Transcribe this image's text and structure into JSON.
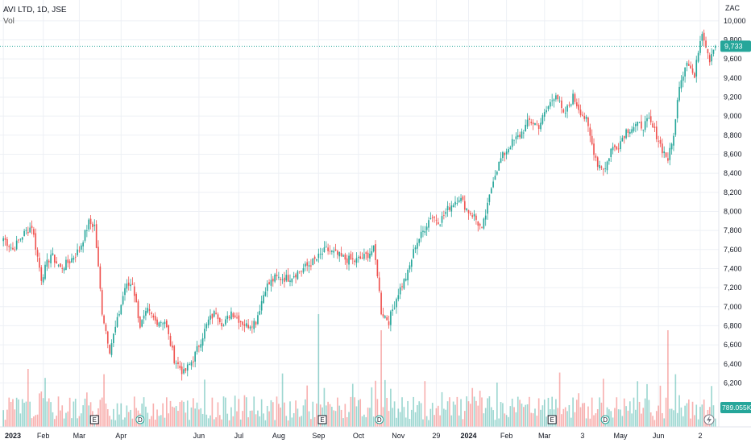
{
  "header": {
    "symbol": "AVI LTD, 1D, JSE",
    "volume_label": "Vol"
  },
  "price_axis": {
    "currency": "ZAC",
    "last_price_label": "9,733",
    "volume_label": "789.055K"
  },
  "colors": {
    "up": "#26a69a",
    "down": "#ef5350",
    "grid": "#edf0f5",
    "last_price_line": "#26a69a"
  },
  "chart_data": {
    "type": "candlestick",
    "ylim": [
      5950,
      10100
    ],
    "y_ticks": [
      6200,
      6400,
      6600,
      6800,
      7000,
      7200,
      7400,
      7600,
      7800,
      8000,
      8200,
      8400,
      8600,
      8800,
      9000,
      9200,
      9400,
      9600,
      9800,
      10000
    ],
    "y_tick_labels": [
      "6,200",
      "6,400",
      "6,600",
      "6,800",
      "7,000",
      "7,200",
      "7,400",
      "7,600",
      "7,800",
      "8,000",
      "8,200",
      "8,400",
      "8,600",
      "8,800",
      "9,000",
      "9,200",
      "9,400",
      "9,600",
      "9,800",
      "10,000"
    ],
    "x_labels": [
      "2023",
      "Feb",
      "Mar",
      "Apr",
      "Jun",
      "Jul",
      "Aug",
      "Sep",
      "Oct",
      "Nov",
      "29",
      "2024",
      "Feb",
      "Mar",
      "3",
      "May",
      "Jun",
      "2"
    ],
    "x_label_index": [
      0,
      21,
      40,
      62,
      103,
      124,
      145,
      166,
      187,
      208,
      228,
      245,
      265,
      285,
      305,
      325,
      345,
      367
    ],
    "last_price": 9733,
    "events": [
      {
        "label": "E",
        "index": 48
      },
      {
        "label": "D",
        "index": 72
      },
      {
        "label": "E",
        "index": 168
      },
      {
        "label": "D",
        "index": 198
      },
      {
        "label": "E",
        "index": 289
      },
      {
        "label": "D",
        "index": 317
      }
    ],
    "close_keypoints": [
      [
        0,
        7720
      ],
      [
        5,
        7600
      ],
      [
        10,
        7750
      ],
      [
        15,
        7850
      ],
      [
        20,
        7300
      ],
      [
        25,
        7550
      ],
      [
        30,
        7400
      ],
      [
        35,
        7480
      ],
      [
        40,
        7600
      ],
      [
        45,
        7880
      ],
      [
        48,
        7850
      ],
      [
        52,
        6950
      ],
      [
        56,
        6550
      ],
      [
        60,
        6850
      ],
      [
        64,
        7200
      ],
      [
        68,
        7250
      ],
      [
        72,
        6800
      ],
      [
        76,
        6950
      ],
      [
        80,
        6850
      ],
      [
        85,
        6850
      ],
      [
        90,
        6450
      ],
      [
        95,
        6300
      ],
      [
        100,
        6450
      ],
      [
        104,
        6650
      ],
      [
        108,
        6850
      ],
      [
        112,
        6950
      ],
      [
        116,
        6800
      ],
      [
        120,
        6950
      ],
      [
        125,
        6850
      ],
      [
        128,
        6800
      ],
      [
        133,
        6850
      ],
      [
        138,
        7200
      ],
      [
        143,
        7300
      ],
      [
        150,
        7300
      ],
      [
        158,
        7400
      ],
      [
        165,
        7500
      ],
      [
        170,
        7600
      ],
      [
        175,
        7550
      ],
      [
        180,
        7500
      ],
      [
        185,
        7480
      ],
      [
        190,
        7520
      ],
      [
        195,
        7600
      ],
      [
        197,
        7350
      ],
      [
        199,
        6950
      ],
      [
        203,
        6850
      ],
      [
        208,
        7150
      ],
      [
        213,
        7350
      ],
      [
        217,
        7650
      ],
      [
        220,
        7750
      ],
      [
        225,
        7950
      ],
      [
        230,
        7900
      ],
      [
        235,
        8050
      ],
      [
        240,
        8150
      ],
      [
        245,
        8000
      ],
      [
        248,
        7950
      ],
      [
        252,
        7800
      ],
      [
        255,
        8050
      ],
      [
        258,
        8350
      ],
      [
        262,
        8550
      ],
      [
        267,
        8700
      ],
      [
        272,
        8800
      ],
      [
        277,
        8950
      ],
      [
        282,
        8900
      ],
      [
        287,
        9100
      ],
      [
        291,
        9250
      ],
      [
        295,
        9000
      ],
      [
        300,
        9200
      ],
      [
        304,
        9050
      ],
      [
        307,
        8950
      ],
      [
        310,
        8700
      ],
      [
        313,
        8500
      ],
      [
        317,
        8450
      ],
      [
        320,
        8650
      ],
      [
        324,
        8700
      ],
      [
        328,
        8850
      ],
      [
        333,
        8900
      ],
      [
        337,
        8900
      ],
      [
        340,
        8950
      ],
      [
        344,
        8800
      ],
      [
        347,
        8650
      ],
      [
        350,
        8550
      ],
      [
        352,
        8700
      ],
      [
        354,
        8950
      ],
      [
        356,
        9350
      ],
      [
        358,
        9450
      ],
      [
        360,
        9600
      ],
      [
        362,
        9500
      ],
      [
        364,
        9400
      ],
      [
        366,
        9700
      ],
      [
        368,
        9900
      ],
      [
        370,
        9750
      ],
      [
        372,
        9600
      ],
      [
        374,
        9733
      ]
    ]
  }
}
